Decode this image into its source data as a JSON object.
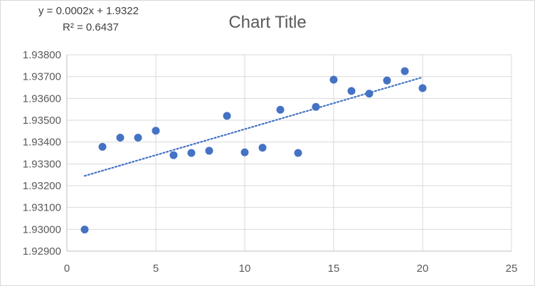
{
  "chart_data": {
    "type": "scatter",
    "title": "Chart Title",
    "xlabel": "",
    "ylabel": "",
    "xlim": [
      0,
      25
    ],
    "ylim": [
      1.929,
      1.938
    ],
    "x_ticks": [
      0,
      5,
      10,
      15,
      20,
      25
    ],
    "y_ticks": [
      1.929,
      1.93,
      1.931,
      1.932,
      1.933,
      1.934,
      1.935,
      1.936,
      1.937,
      1.938
    ],
    "y_tick_labels": [
      "1.92900",
      "1.93000",
      "1.93100",
      "1.93200",
      "1.93300",
      "1.93400",
      "1.93500",
      "1.93600",
      "1.93700",
      "1.93800"
    ],
    "grid": "vertical-and-horizontal",
    "legend": "none",
    "marker_color": "#4472C4",
    "series": [
      {
        "x": [
          1,
          2,
          3,
          4,
          5,
          6,
          7,
          8,
          9,
          10,
          11,
          12,
          13,
          14,
          15,
          16,
          17,
          18,
          19,
          20
        ],
        "y": [
          1.92999,
          1.93378,
          1.9342,
          1.9342,
          1.93452,
          1.9334,
          1.9335,
          1.9336,
          1.9352,
          1.93353,
          1.93374,
          1.93548,
          1.9335,
          1.93561,
          1.93686,
          1.93634,
          1.93622,
          1.93682,
          1.93725,
          1.93647
        ]
      }
    ],
    "trendline": {
      "type": "linear",
      "style": "dotted",
      "x_range": [
        1,
        20
      ],
      "y_start": 1.93245,
      "y_end": 1.93697,
      "equation": "y = 0.0002x + 1.9322",
      "r_squared": "R² = 0.6437"
    }
  }
}
